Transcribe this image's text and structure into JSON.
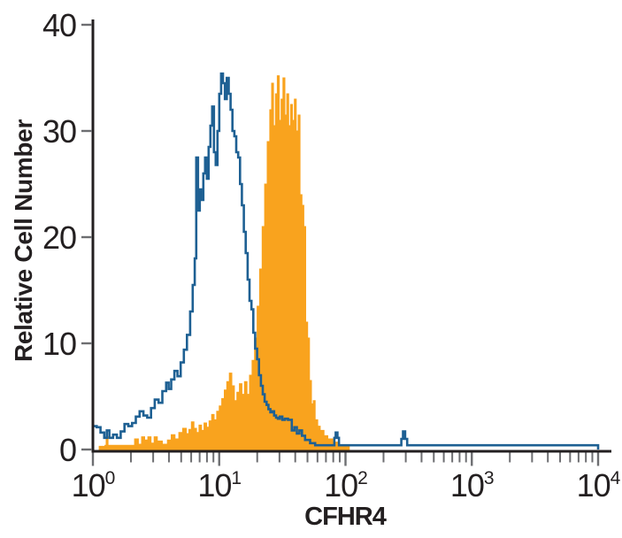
{
  "chart_data": {
    "type": "histogram",
    "subtype": "flow-cytometry-overlay",
    "title": "",
    "xlabel": "CFHR4",
    "ylabel": "Relative Cell Number",
    "x_scale": "log10",
    "x_range_log": [
      0,
      4
    ],
    "ylim": [
      0,
      40
    ],
    "grid": "off",
    "legend": "none",
    "y_ticks": [
      0,
      10,
      20,
      30,
      40
    ],
    "x_major_ticks": [
      {
        "log": 0,
        "base": "10",
        "exp": "0"
      },
      {
        "log": 1,
        "base": "10",
        "exp": "1"
      },
      {
        "log": 2,
        "base": "10",
        "exp": "2"
      },
      {
        "log": 3,
        "base": "10",
        "exp": "3"
      },
      {
        "log": 4,
        "base": "10",
        "exp": "4"
      }
    ],
    "x_minor_ticks_multiples": [
      2,
      3,
      4,
      5,
      6,
      7,
      8,
      9
    ],
    "colors": {
      "axis": "#231f20",
      "tick": "#6d6e71",
      "text": "#231f20",
      "blue_outline": "#1E6093",
      "orange_fill": "#F9A31E",
      "background": "#ffffff"
    },
    "series": [
      {
        "name": "filled-orange-histogram",
        "style": "filled",
        "color": "#F9A31E",
        "points_log10x_count": [
          [
            0.05,
            0.3
          ],
          [
            0.095,
            0.4
          ],
          [
            0.105,
            1.2
          ],
          [
            0.12,
            0.4
          ],
          [
            0.31,
            0.4
          ],
          [
            0.33,
            1.0
          ],
          [
            0.36,
            0.5
          ],
          [
            0.385,
            1.2
          ],
          [
            0.41,
            0.9
          ],
          [
            0.435,
            1.2
          ],
          [
            0.46,
            0.6
          ],
          [
            0.485,
            1.2
          ],
          [
            0.51,
            0.8
          ],
          [
            0.55,
            0.5
          ],
          [
            0.59,
            0.9
          ],
          [
            0.62,
            1.4
          ],
          [
            0.65,
            1.0
          ],
          [
            0.68,
            1.6
          ],
          [
            0.71,
            2.0
          ],
          [
            0.74,
            1.5
          ],
          [
            0.76,
            1.9
          ],
          [
            0.78,
            2.6
          ],
          [
            0.8,
            2.0
          ],
          [
            0.82,
            1.6
          ],
          [
            0.84,
            2.3
          ],
          [
            0.86,
            1.8
          ],
          [
            0.88,
            2.5
          ],
          [
            0.9,
            2.1
          ],
          [
            0.92,
            2.7
          ],
          [
            0.94,
            3.3
          ],
          [
            0.96,
            2.8
          ],
          [
            0.98,
            3.6
          ],
          [
            1.0,
            4.1
          ],
          [
            1.02,
            4.8
          ],
          [
            1.04,
            5.6
          ],
          [
            1.06,
            6.4
          ],
          [
            1.08,
            7.2
          ],
          [
            1.1,
            6.0
          ],
          [
            1.12,
            4.6
          ],
          [
            1.14,
            5.4
          ],
          [
            1.16,
            6.2
          ],
          [
            1.18,
            5.2
          ],
          [
            1.2,
            6.4
          ],
          [
            1.22,
            5.2
          ],
          [
            1.24,
            7.0
          ],
          [
            1.26,
            8.4
          ],
          [
            1.28,
            10.5
          ],
          [
            1.3,
            13.5
          ],
          [
            1.32,
            17.0
          ],
          [
            1.34,
            21.0
          ],
          [
            1.36,
            25.0
          ],
          [
            1.38,
            29.0
          ],
          [
            1.4,
            32.0
          ],
          [
            1.415,
            34.5
          ],
          [
            1.43,
            30.5
          ],
          [
            1.445,
            33.5
          ],
          [
            1.46,
            35.2
          ],
          [
            1.475,
            31.0
          ],
          [
            1.49,
            33.0
          ],
          [
            1.505,
            35.0
          ],
          [
            1.52,
            31.5
          ],
          [
            1.535,
            33.5
          ],
          [
            1.55,
            30.5
          ],
          [
            1.565,
            32.5
          ],
          [
            1.58,
            31.0
          ],
          [
            1.595,
            33.0
          ],
          [
            1.61,
            30.0
          ],
          [
            1.625,
            31.5
          ],
          [
            1.64,
            24.0
          ],
          [
            1.655,
            23.0
          ],
          [
            1.67,
            21.0
          ],
          [
            1.685,
            12.0
          ],
          [
            1.7,
            10.5
          ],
          [
            1.715,
            6.5
          ],
          [
            1.73,
            4.3
          ],
          [
            1.745,
            4.6
          ],
          [
            1.76,
            2.8
          ],
          [
            1.78,
            2.2
          ],
          [
            1.8,
            1.8
          ],
          [
            1.83,
            1.3
          ],
          [
            1.86,
            1.0
          ],
          [
            1.9,
            0.7
          ],
          [
            1.95,
            0.4
          ],
          [
            2.0,
            0.3
          ],
          [
            2.03,
            0.0
          ]
        ]
      },
      {
        "name": "open-blue-histogram",
        "style": "open-outline",
        "color": "#1E6093",
        "points_log10x_count": [
          [
            0.0,
            2.2
          ],
          [
            0.03,
            2.1
          ],
          [
            0.06,
            1.6
          ],
          [
            0.09,
            1.1
          ],
          [
            0.11,
            1.8
          ],
          [
            0.13,
            1.1
          ],
          [
            0.16,
            1.4
          ],
          [
            0.19,
            1.1
          ],
          [
            0.22,
            1.7
          ],
          [
            0.25,
            2.4
          ],
          [
            0.28,
            2.2
          ],
          [
            0.31,
            2.5
          ],
          [
            0.34,
            3.1
          ],
          [
            0.37,
            3.6
          ],
          [
            0.4,
            3.2
          ],
          [
            0.43,
            3.0
          ],
          [
            0.46,
            3.9
          ],
          [
            0.49,
            4.7
          ],
          [
            0.52,
            4.4
          ],
          [
            0.55,
            5.5
          ],
          [
            0.58,
            6.3
          ],
          [
            0.6,
            5.7
          ],
          [
            0.62,
            6.6
          ],
          [
            0.645,
            7.4
          ],
          [
            0.67,
            6.9
          ],
          [
            0.695,
            8.2
          ],
          [
            0.72,
            9.4
          ],
          [
            0.745,
            10.8
          ],
          [
            0.77,
            13.0
          ],
          [
            0.79,
            15.5
          ],
          [
            0.806,
            18.0
          ],
          [
            0.818,
            27.5
          ],
          [
            0.832,
            22.5
          ],
          [
            0.846,
            24.5
          ],
          [
            0.86,
            23.5
          ],
          [
            0.874,
            26.0
          ],
          [
            0.888,
            27.5
          ],
          [
            0.902,
            25.5
          ],
          [
            0.916,
            28.5
          ],
          [
            0.93,
            30.5
          ],
          [
            0.944,
            32.3
          ],
          [
            0.958,
            28.0
          ],
          [
            0.972,
            26.8
          ],
          [
            0.986,
            30.0
          ],
          [
            1.0,
            33.5
          ],
          [
            1.015,
            35.4
          ],
          [
            1.03,
            34.5
          ],
          [
            1.045,
            33.0
          ],
          [
            1.06,
            35.0
          ],
          [
            1.075,
            33.5
          ],
          [
            1.09,
            32.0
          ],
          [
            1.105,
            30.0
          ],
          [
            1.12,
            29.5
          ],
          [
            1.135,
            28.0
          ],
          [
            1.15,
            27.5
          ],
          [
            1.165,
            25.0
          ],
          [
            1.18,
            23.0
          ],
          [
            1.195,
            20.5
          ],
          [
            1.21,
            18.5
          ],
          [
            1.225,
            16.0
          ],
          [
            1.24,
            14.0
          ],
          [
            1.255,
            13.2
          ],
          [
            1.27,
            11.0
          ],
          [
            1.285,
            9.5
          ],
          [
            1.3,
            8.5
          ],
          [
            1.315,
            7.0
          ],
          [
            1.33,
            6.0
          ],
          [
            1.345,
            5.2
          ],
          [
            1.36,
            4.5
          ],
          [
            1.375,
            4.2
          ],
          [
            1.39,
            3.8
          ],
          [
            1.405,
            3.5
          ],
          [
            1.42,
            3.6
          ],
          [
            1.435,
            3.2
          ],
          [
            1.45,
            3.0
          ],
          [
            1.465,
            2.9
          ],
          [
            1.48,
            3.1
          ],
          [
            1.5,
            2.8
          ],
          [
            1.52,
            2.9
          ],
          [
            1.545,
            2.8
          ],
          [
            1.575,
            1.8
          ],
          [
            1.595,
            2.1
          ],
          [
            1.615,
            1.5
          ],
          [
            1.635,
            1.8
          ],
          [
            1.655,
            1.3
          ],
          [
            1.68,
            0.9
          ],
          [
            1.72,
            0.6
          ],
          [
            1.76,
            0.4
          ],
          [
            1.905,
            0.4
          ],
          [
            1.912,
            1.1
          ],
          [
            1.922,
            1.6
          ],
          [
            1.936,
            1.1
          ],
          [
            1.948,
            0.4
          ],
          [
            2.43,
            0.4
          ],
          [
            2.442,
            1.0
          ],
          [
            2.455,
            1.7
          ],
          [
            2.472,
            1.0
          ],
          [
            2.488,
            0.4
          ],
          [
            4.0,
            0.4
          ],
          [
            4.0,
            0.0
          ]
        ]
      }
    ]
  }
}
